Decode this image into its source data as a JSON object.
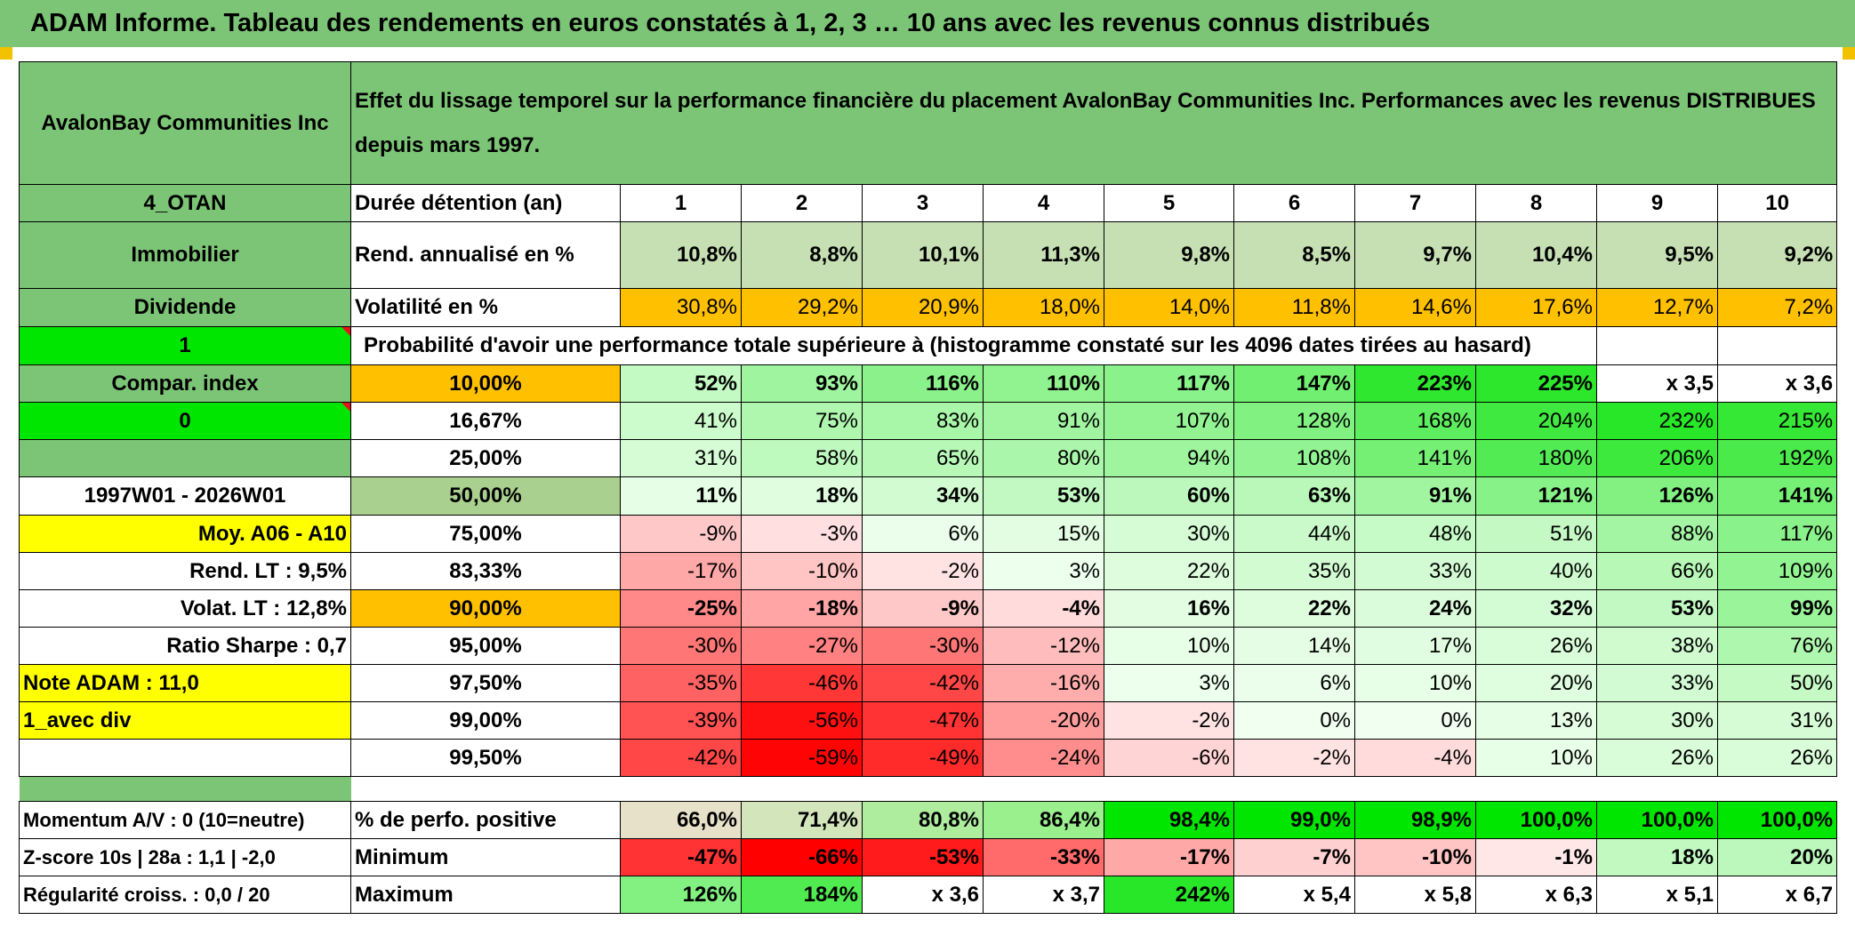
{
  "title": "ADAM Informe. Tableau des rendements en euros constatés à 1, 2, 3 … 10 ans avec les revenus connus distribués",
  "header": {
    "company": "AvalonBay Communities Inc",
    "description": "Effet du lissage temporel sur la performance financière du placement AvalonBay Communities Inc. Performances avec les revenus DISTRIBUES depuis mars 1997."
  },
  "side": {
    "code": "4_OTAN",
    "sector": "Immobilier",
    "type": "Dividende",
    "one": "1",
    "compar": "Compar. index",
    "zero": "0",
    "period": "1997W01 - 2026W01",
    "moy": "Moy. A06 - A10",
    "rend_lt": "Rend. LT :   9,5%",
    "volat_lt": "Volat. LT :   12,8%",
    "sharpe": "Ratio Sharpe :   0,7",
    "note": "Note ADAM : 11,0",
    "avec_div": "1_avec div",
    "momentum": "Momentum A/V : 0 (10=neutre)",
    "zscore": "Z-score 10s | 28a : 1,1 | -2,0",
    "regularite": "Régularité croiss. : 0,0 / 20"
  },
  "labels": {
    "duree": "Durée détention (an)",
    "rend": "Rend. annualisé en %",
    "volat": "Volatilité en %",
    "proba": "Probabilité d'avoir une performance totale supérieure à (histogramme constaté sur les 4096 dates tirées au hasard)",
    "positive": "% de perfo. positive",
    "minimum": "Minimum",
    "maximum": "Maximum"
  },
  "years": [
    "1",
    "2",
    "3",
    "4",
    "5",
    "6",
    "7",
    "8",
    "9",
    "10"
  ],
  "rend": [
    "10,8%",
    "8,8%",
    "10,1%",
    "11,3%",
    "9,8%",
    "8,5%",
    "9,7%",
    "10,4%",
    "9,5%",
    "9,2%"
  ],
  "volat": [
    "30,8%",
    "29,2%",
    "20,9%",
    "18,0%",
    "14,0%",
    "11,8%",
    "14,6%",
    "17,6%",
    "12,7%",
    "7,2%"
  ],
  "proba_rows": [
    {
      "pct": "10,00%",
      "values": [
        "52%",
        "93%",
        "116%",
        "110%",
        "117%",
        "147%",
        "223%",
        "225%",
        "x 3,5",
        "x 3,6"
      ]
    },
    {
      "pct": "16,67%",
      "values": [
        "41%",
        "75%",
        "83%",
        "91%",
        "107%",
        "128%",
        "168%",
        "204%",
        "232%",
        "215%"
      ]
    },
    {
      "pct": "25,00%",
      "values": [
        "31%",
        "58%",
        "65%",
        "80%",
        "94%",
        "108%",
        "141%",
        "180%",
        "206%",
        "192%"
      ]
    },
    {
      "pct": "50,00%",
      "values": [
        "11%",
        "18%",
        "34%",
        "53%",
        "60%",
        "63%",
        "91%",
        "121%",
        "126%",
        "141%"
      ]
    },
    {
      "pct": "75,00%",
      "values": [
        "-9%",
        "-3%",
        "6%",
        "15%",
        "30%",
        "44%",
        "48%",
        "51%",
        "88%",
        "117%"
      ]
    },
    {
      "pct": "83,33%",
      "values": [
        "-17%",
        "-10%",
        "-2%",
        "3%",
        "22%",
        "35%",
        "33%",
        "40%",
        "66%",
        "109%"
      ]
    },
    {
      "pct": "90,00%",
      "values": [
        "-25%",
        "-18%",
        "-9%",
        "-4%",
        "16%",
        "22%",
        "24%",
        "32%",
        "53%",
        "99%"
      ]
    },
    {
      "pct": "95,00%",
      "values": [
        "-30%",
        "-27%",
        "-30%",
        "-12%",
        "10%",
        "14%",
        "17%",
        "26%",
        "38%",
        "76%"
      ]
    },
    {
      "pct": "97,50%",
      "values": [
        "-35%",
        "-46%",
        "-42%",
        "-16%",
        "3%",
        "6%",
        "10%",
        "20%",
        "33%",
        "50%"
      ]
    },
    {
      "pct": "99,00%",
      "values": [
        "-39%",
        "-56%",
        "-47%",
        "-20%",
        "-2%",
        "0%",
        "0%",
        "13%",
        "30%",
        "31%"
      ]
    },
    {
      "pct": "99,50%",
      "values": [
        "-42%",
        "-59%",
        "-49%",
        "-24%",
        "-6%",
        "-2%",
        "-4%",
        "10%",
        "26%",
        "26%"
      ]
    }
  ],
  "positive": [
    "66,0%",
    "71,4%",
    "80,8%",
    "86,4%",
    "98,4%",
    "99,0%",
    "98,9%",
    "100,0%",
    "100,0%",
    "100,0%"
  ],
  "minimum": [
    "-47%",
    "-66%",
    "-53%",
    "-33%",
    "-17%",
    "-7%",
    "-10%",
    "-1%",
    "18%",
    "20%"
  ],
  "maximum": [
    "126%",
    "184%",
    "x 3,6",
    "x 3,7",
    "242%",
    "x 5,4",
    "x 5,8",
    "x 6,3",
    "x 5,1",
    "x 6,7"
  ],
  "colors": {
    "title_green": "#7cc576",
    "pale_green": "#c6e0b4",
    "orange": "#ffc000",
    "yellow": "#ffff00",
    "lime": "#00e600",
    "red_text": "#e0151b"
  }
}
